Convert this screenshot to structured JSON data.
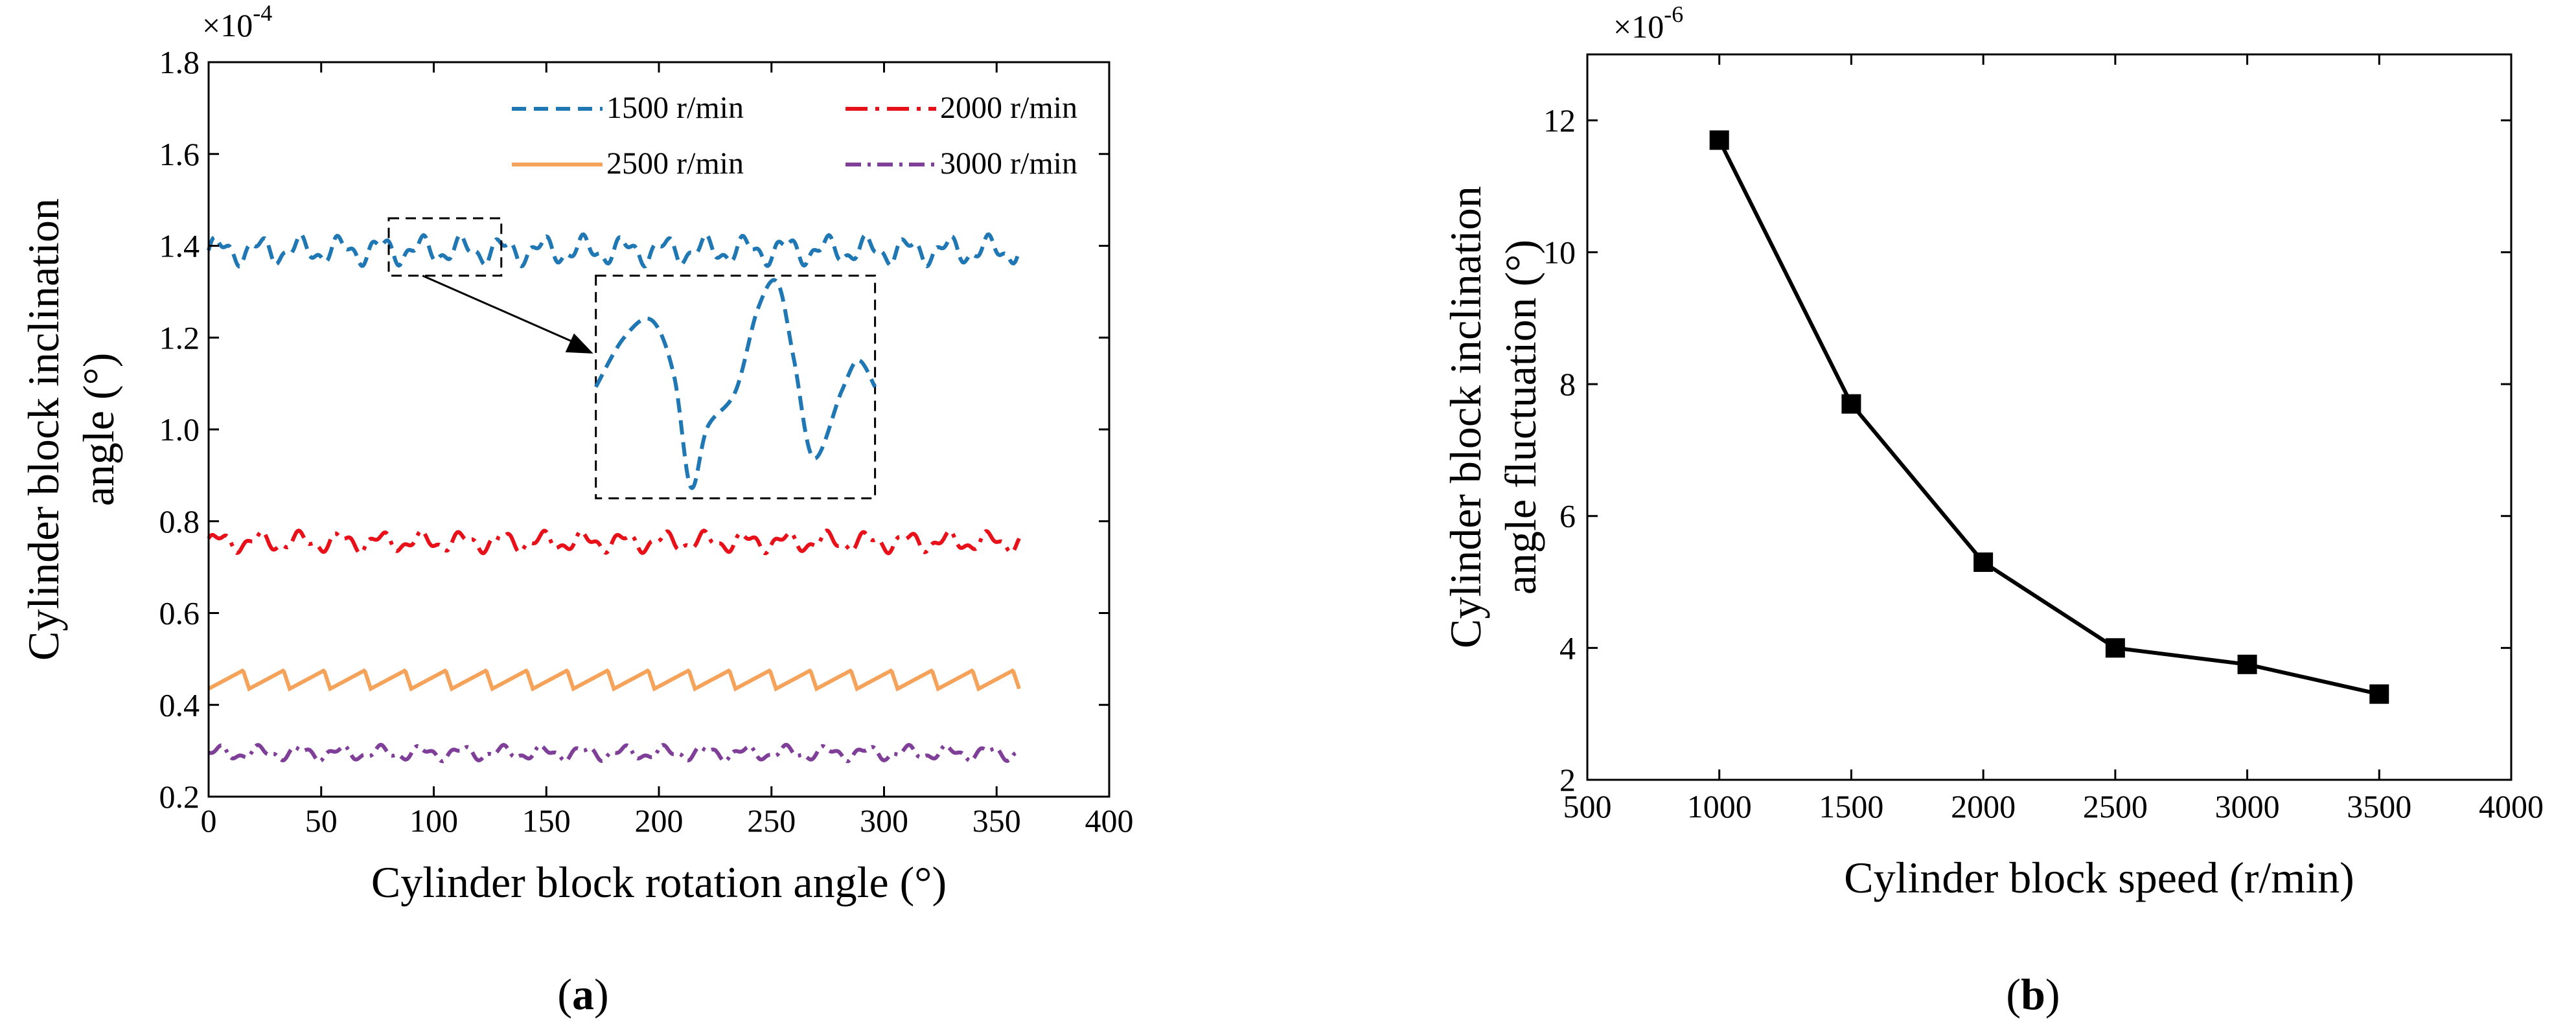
{
  "figure": {
    "panel_a_label": {
      "open": "(",
      "letter": "a",
      "close": ")"
    },
    "panel_b_label": {
      "open": "(",
      "letter": "b",
      "close": ")"
    }
  },
  "chart_data": [
    {
      "id": "a",
      "type": "line",
      "title": "",
      "xlabel": "Cylinder block rotation angle (°)",
      "ylabel_lines": [
        "Cylinder block inclination",
        "angle (°)"
      ],
      "multiplier": {
        "base": "×10",
        "exp": "-4"
      },
      "xlim": [
        0,
        400
      ],
      "ylim": [
        0.2,
        1.8
      ],
      "xticks": [
        0,
        50,
        100,
        150,
        200,
        250,
        300,
        350,
        400
      ],
      "yticks": [
        0.2,
        0.4,
        0.6,
        0.8,
        1.0,
        1.2,
        1.4,
        1.6,
        1.8
      ],
      "ytick_labels": [
        "0.2",
        "0.4",
        "0.6",
        "0.8",
        "1.0",
        "1.2",
        "1.4",
        "1.6",
        "1.8"
      ],
      "grid": false,
      "legend_position": "top-right",
      "series": [
        {
          "name": "1500 r/min",
          "color": "#1f77b4",
          "style": "dashed",
          "center": 1.39,
          "amplitude": 0.035,
          "period": 18,
          "shape": "wave"
        },
        {
          "name": "2000 r/min",
          "color": "#e8111a",
          "style": "longdash",
          "center": 0.755,
          "amplitude": 0.025,
          "period": 18,
          "shape": "wave"
        },
        {
          "name": "2500 r/min",
          "color": "#f5a25a",
          "style": "solid",
          "center": 0.455,
          "amplitude": 0.02,
          "period": 18,
          "shape": "saw"
        },
        {
          "name": "3000 r/min",
          "color": "#7f3f98",
          "style": "dashdot",
          "center": 0.295,
          "amplitude": 0.018,
          "period": 18,
          "shape": "wave"
        }
      ],
      "x_range": [
        0,
        360
      ],
      "inset": {
        "source_xlim": [
          80,
          130
        ],
        "source_ylim": [
          1.335,
          1.46
        ],
        "display_xlim": [
          172,
          296
        ],
        "display_ylim": [
          0.85,
          1.335
        ],
        "zoom_series": "1500 r/min",
        "points_x": [
          0,
          0.1,
          0.2,
          0.28,
          0.34,
          0.4,
          0.5,
          0.58,
          0.65,
          0.71,
          0.78,
          0.88,
          0.94,
          1.0
        ],
        "points_y": [
          0.5,
          0.72,
          0.8,
          0.55,
          0.05,
          0.32,
          0.48,
          0.85,
          0.97,
          0.62,
          0.18,
          0.48,
          0.62,
          0.5
        ]
      }
    },
    {
      "id": "b",
      "type": "line",
      "title": "",
      "xlabel": "Cylinder block speed (r/min)",
      "ylabel_lines": [
        "Cylinder block inclination",
        "angle fluctuation (°)"
      ],
      "multiplier": {
        "base": "×10",
        "exp": "-6"
      },
      "xlim": [
        500,
        4000
      ],
      "ylim": [
        2,
        13
      ],
      "xticks": [
        500,
        1000,
        1500,
        2000,
        2500,
        3000,
        3500,
        4000
      ],
      "yticks": [
        2,
        4,
        6,
        8,
        10,
        12
      ],
      "grid": false,
      "series": [
        {
          "name": "fluctuation",
          "color": "#000000",
          "marker": "square",
          "x": [
            1000,
            1500,
            2000,
            2500,
            3000,
            3500
          ],
          "y": [
            11.7,
            7.7,
            5.3,
            4.0,
            3.75,
            3.3
          ]
        }
      ]
    }
  ]
}
